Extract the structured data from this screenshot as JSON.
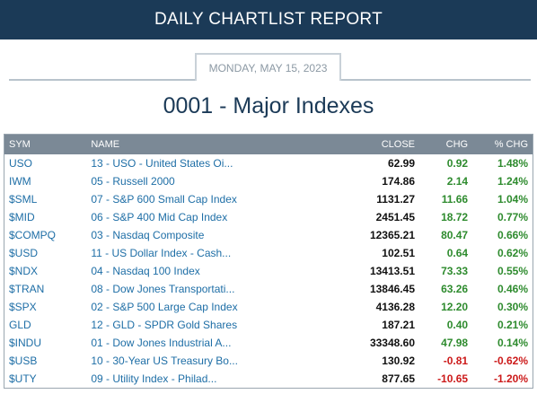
{
  "header": {
    "banner_title": "DAILY CHARTLIST REPORT",
    "date": "MONDAY, MAY 15, 2023",
    "list_title": "0001 - Major Indexes"
  },
  "colors": {
    "banner": "#1b3a57",
    "header_row": "#7b8996",
    "link": "#1e6ea6",
    "positive": "#2e8b2e",
    "negative": "#cc1a1a"
  },
  "table": {
    "columns": {
      "sym": "SYM",
      "name": "NAME",
      "close": "CLOSE",
      "chg": "CHG",
      "pct_chg": "% CHG"
    },
    "rows": [
      {
        "sym": "USO",
        "name": "13 - USO - United States Oi...",
        "close": "62.99",
        "chg": "0.92",
        "pct": "1.48%",
        "dir": "up"
      },
      {
        "sym": "IWM",
        "name": "05 - Russell 2000",
        "close": "174.86",
        "chg": "2.14",
        "pct": "1.24%",
        "dir": "up"
      },
      {
        "sym": "$SML",
        "name": "07 - S&P 600 Small Cap Index",
        "close": "1131.27",
        "chg": "11.66",
        "pct": "1.04%",
        "dir": "up"
      },
      {
        "sym": "$MID",
        "name": "06 - S&P 400 Mid Cap Index",
        "close": "2451.45",
        "chg": "18.72",
        "pct": "0.77%",
        "dir": "up"
      },
      {
        "sym": "$COMPQ",
        "name": "03 - Nasdaq Composite",
        "close": "12365.21",
        "chg": "80.47",
        "pct": "0.66%",
        "dir": "up"
      },
      {
        "sym": "$USD",
        "name": "11 - US Dollar Index - Cash...",
        "close": "102.51",
        "chg": "0.64",
        "pct": "0.62%",
        "dir": "up"
      },
      {
        "sym": "$NDX",
        "name": "04 - Nasdaq 100 Index",
        "close": "13413.51",
        "chg": "73.33",
        "pct": "0.55%",
        "dir": "up"
      },
      {
        "sym": "$TRAN",
        "name": "08 - Dow Jones Transportati...",
        "close": "13846.45",
        "chg": "63.26",
        "pct": "0.46%",
        "dir": "up"
      },
      {
        "sym": "$SPX",
        "name": "02 - S&P 500 Large Cap Index",
        "close": "4136.28",
        "chg": "12.20",
        "pct": "0.30%",
        "dir": "up"
      },
      {
        "sym": "GLD",
        "name": "12 - GLD - SPDR Gold Shares",
        "close": "187.21",
        "chg": "0.40",
        "pct": "0.21%",
        "dir": "up"
      },
      {
        "sym": "$INDU",
        "name": "01 - Dow Jones Industrial A...",
        "close": "33348.60",
        "chg": "47.98",
        "pct": "0.14%",
        "dir": "up"
      },
      {
        "sym": "$USB",
        "name": "10 - 30-Year US Treasury Bo...",
        "close": "130.92",
        "chg": "-0.81",
        "pct": "-0.62%",
        "dir": "down"
      },
      {
        "sym": "$UTY",
        "name": "09 - Utility Index - Philad...",
        "close": "877.65",
        "chg": "-10.65",
        "pct": "-1.20%",
        "dir": "down"
      }
    ]
  }
}
